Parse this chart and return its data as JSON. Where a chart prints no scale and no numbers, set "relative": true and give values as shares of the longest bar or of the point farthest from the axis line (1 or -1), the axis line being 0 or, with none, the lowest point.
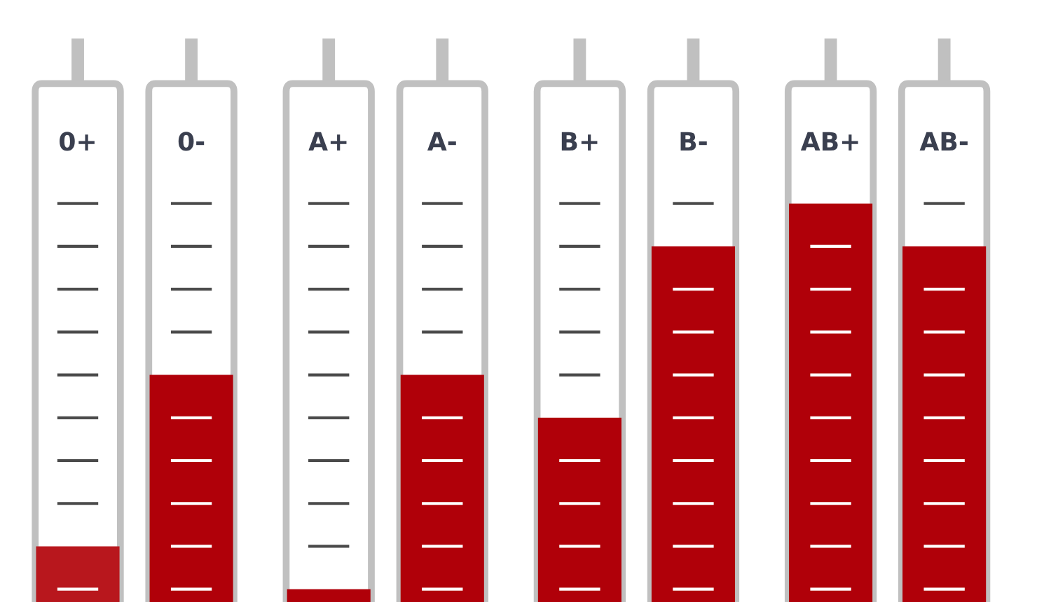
{
  "chart_data": {
    "type": "bar",
    "relative": true,
    "categories": [
      "0+",
      "0-",
      "A+",
      "A-",
      "B+",
      "B-",
      "AB+",
      "AB-"
    ],
    "values": [
      0.2,
      0.6,
      0.1,
      0.6,
      0.5,
      0.9,
      1.0,
      0.9
    ],
    "colors": [
      "#b8171d",
      "#b00009",
      "#b00009",
      "#b00009",
      "#b00009",
      "#b00009",
      "#b00009",
      "#b00009"
    ]
  }
}
